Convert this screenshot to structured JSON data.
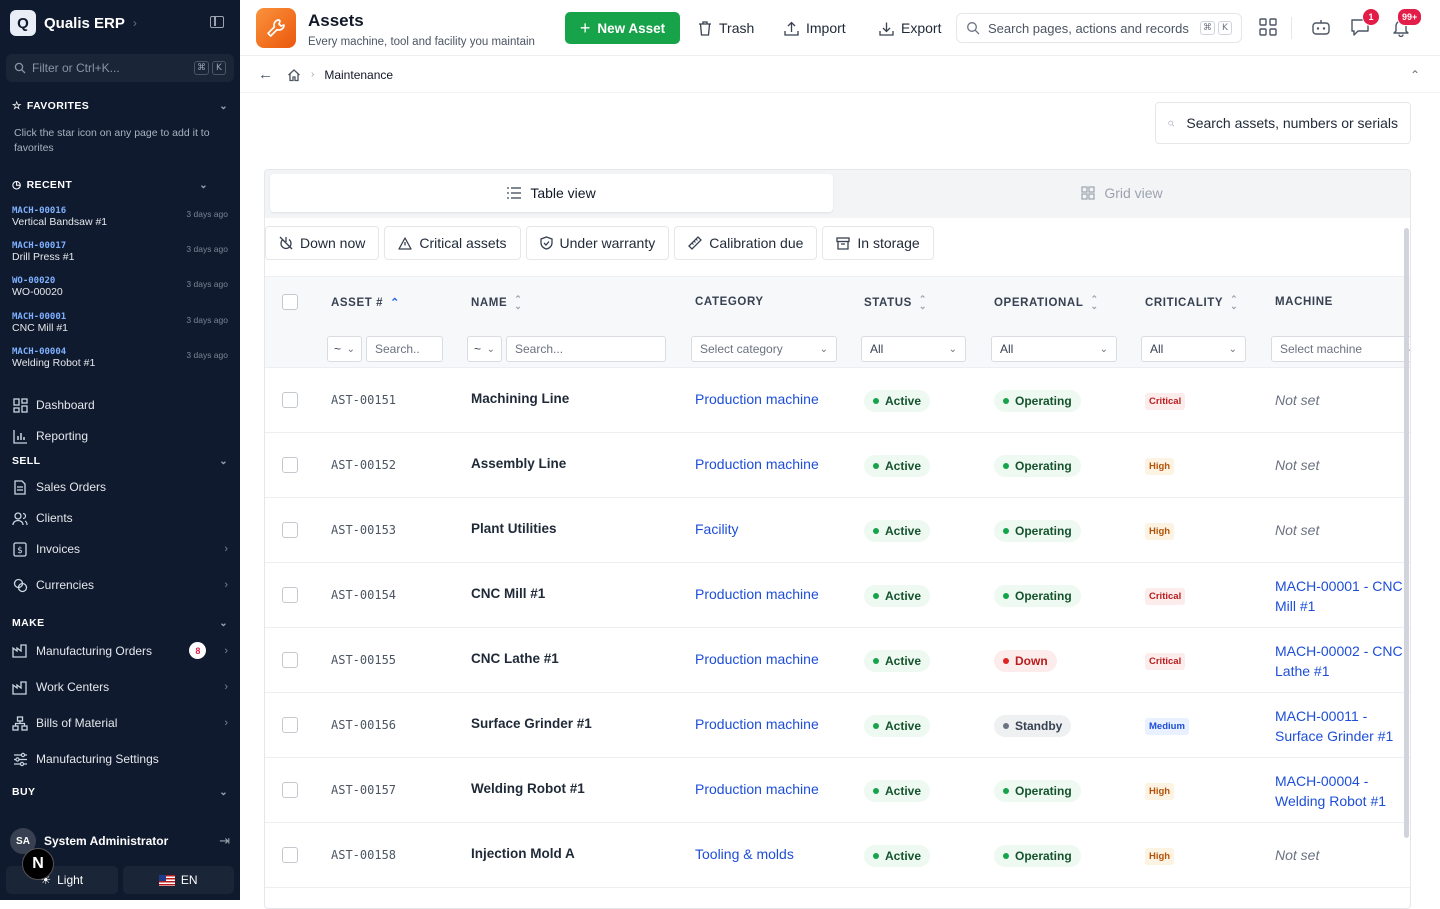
{
  "sidebar": {
    "brand": "Qualis ERP",
    "logo_letter": "Q",
    "filter_placeholder": "Filter or Ctrl+K...",
    "filter_keys": [
      "⌘",
      "K"
    ],
    "favorites": {
      "title": "FAVORITES",
      "note": "Click the star icon on any page to add it to favorites"
    },
    "recent": {
      "title": "RECENT",
      "items": [
        {
          "code": "MACH-00016",
          "name": "Vertical Bandsaw #1",
          "ago": "3 days ago"
        },
        {
          "code": "MACH-00017",
          "name": "Drill Press #1",
          "ago": "3 days ago"
        },
        {
          "code": "WO-00020",
          "name": "WO-00020",
          "ago": "3 days ago"
        },
        {
          "code": "MACH-00001",
          "name": "CNC Mill #1",
          "ago": "3 days ago"
        },
        {
          "code": "MACH-00004",
          "name": "Welding Robot #1",
          "ago": "3 days ago"
        }
      ]
    },
    "nav_top": [
      {
        "label": "Dashboard"
      },
      {
        "label": "Reporting"
      }
    ],
    "sell": {
      "title": "SELL",
      "items": [
        {
          "label": "Sales Orders"
        },
        {
          "label": "Clients"
        },
        {
          "label": "Invoices"
        },
        {
          "label": "Currencies"
        }
      ]
    },
    "make": {
      "title": "MAKE",
      "items": [
        {
          "label": "Manufacturing Orders",
          "badge": "8"
        },
        {
          "label": "Work Centers"
        },
        {
          "label": "Bills of Material"
        },
        {
          "label": "Manufacturing Settings"
        }
      ]
    },
    "buy": {
      "title": "BUY"
    },
    "user": {
      "initials": "SA",
      "name": "System Administrator"
    },
    "assistant_letter": "N",
    "theme_label": "Light",
    "language_label": "EN"
  },
  "header": {
    "title": "Assets",
    "subtitle": "Every machine, tool and facility you maintain",
    "new_button": "New Asset",
    "trash": "Trash",
    "import": "Import",
    "export": "Export",
    "search_placeholder": "Search pages, actions and records",
    "search_keys": [
      "⌘",
      "K"
    ],
    "messages_badge": "1",
    "notifications_badge": "99+"
  },
  "breadcrumb": {
    "current": "Maintenance"
  },
  "asset_search_placeholder": "Search assets, numbers or serials",
  "views": {
    "table": "Table view",
    "grid": "Grid view"
  },
  "quick_filters": [
    "Down now",
    "Critical assets",
    "Under warranty",
    "Calibration due",
    "In storage"
  ],
  "columns": [
    "ASSET #",
    "NAME",
    "CATEGORY",
    "STATUS",
    "OPERATIONAL",
    "CRITICALITY",
    "MACHINE"
  ],
  "filters": {
    "asset_op": "~",
    "asset_search": "Search..",
    "name_op": "~",
    "name_search": "Search...",
    "category": "Select category",
    "status": "All",
    "operational": "All",
    "criticality": "All",
    "machine": "Select machine"
  },
  "rows": [
    {
      "asset": "AST-00151",
      "name": "Machining Line",
      "category": "Production machine",
      "status": "Active",
      "operational": "Operating",
      "criticality": "Critical",
      "machine": "Not set"
    },
    {
      "asset": "AST-00152",
      "name": "Assembly Line",
      "category": "Production machine",
      "status": "Active",
      "operational": "Operating",
      "criticality": "High",
      "machine": "Not set"
    },
    {
      "asset": "AST-00153",
      "name": "Plant Utilities",
      "category": "Facility",
      "status": "Active",
      "operational": "Operating",
      "criticality": "High",
      "machine": "Not set"
    },
    {
      "asset": "AST-00154",
      "name": "CNC Mill #1",
      "category": "Production machine",
      "status": "Active",
      "operational": "Operating",
      "criticality": "Critical",
      "machine": "MACH-00001 - CNC Mill #1"
    },
    {
      "asset": "AST-00155",
      "name": "CNC Lathe #1",
      "category": "Production machine",
      "status": "Active",
      "operational": "Down",
      "criticality": "Critical",
      "machine": "MACH-00002 - CNC Lathe #1"
    },
    {
      "asset": "AST-00156",
      "name": "Surface Grinder #1",
      "category": "Production machine",
      "status": "Active",
      "operational": "Standby",
      "criticality": "Medium",
      "machine": "MACH-00011 - Surface Grinder #1"
    },
    {
      "asset": "AST-00157",
      "name": "Welding Robot #1",
      "category": "Production machine",
      "status": "Active",
      "operational": "Operating",
      "criticality": "High",
      "machine": "MACH-00004 - Welding Robot #1"
    },
    {
      "asset": "AST-00158",
      "name": "Injection Mold A",
      "category": "Tooling & molds",
      "status": "Active",
      "operational": "Operating",
      "criticality": "High",
      "machine": "Not set"
    }
  ],
  "colors": {
    "sidebar_bg": "#0f1a2e",
    "primary_green": "#16a34a",
    "link_blue": "#1d4ed8",
    "danger": "#dc2626",
    "brand_orange": "#ea580c"
  }
}
